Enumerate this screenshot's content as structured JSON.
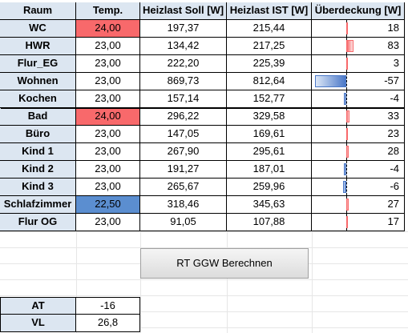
{
  "headers": [
    "Raum",
    "Temp.",
    "Heizlast Soll [W]",
    "Heizlast IST [W]",
    "Überdeckung [W]"
  ],
  "rows": [
    {
      "name": "WC",
      "temp": "24,00",
      "soll": "197,37",
      "ist": "215,44",
      "ueber": "18",
      "value": 18,
      "temp_state": "high"
    },
    {
      "name": "HWR",
      "temp": "23,00",
      "soll": "134,42",
      "ist": "217,25",
      "ueber": "83",
      "value": 83,
      "temp_state": "normal"
    },
    {
      "name": "Flur_EG",
      "temp": "23,00",
      "soll": "222,20",
      "ist": "225,39",
      "ueber": "3",
      "value": 3,
      "temp_state": "normal"
    },
    {
      "name": "Wohnen",
      "temp": "23,00",
      "soll": "869,73",
      "ist": "812,64",
      "ueber": "-57",
      "value": -57,
      "temp_state": "normal"
    },
    {
      "name": "Kochen",
      "temp": "23,00",
      "soll": "157,14",
      "ist": "152,77",
      "ueber": "-4",
      "value": -4,
      "temp_state": "normal"
    },
    {
      "name": "Bad",
      "temp": "24,00",
      "soll": "296,22",
      "ist": "329,58",
      "ueber": "33",
      "value": 33,
      "temp_state": "high"
    },
    {
      "name": "Büro",
      "temp": "23,00",
      "soll": "147,05",
      "ist": "169,61",
      "ueber": "23",
      "value": 23,
      "temp_state": "normal"
    },
    {
      "name": "Kind 1",
      "temp": "23,00",
      "soll": "267,90",
      "ist": "295,61",
      "ueber": "28",
      "value": 28,
      "temp_state": "normal"
    },
    {
      "name": "Kind 2",
      "temp": "23,00",
      "soll": "191,27",
      "ist": "187,01",
      "ueber": "-4",
      "value": -4,
      "temp_state": "normal"
    },
    {
      "name": "Kind 3",
      "temp": "23,00",
      "soll": "265,67",
      "ist": "259,96",
      "ueber": "-6",
      "value": -6,
      "temp_state": "normal"
    },
    {
      "name": "Schlafzimmer",
      "temp": "22,50",
      "soll": "318,46",
      "ist": "345,63",
      "ueber": "27",
      "value": 27,
      "temp_state": "low"
    },
    {
      "name": "Flur OG",
      "temp": "23,00",
      "soll": "91,05",
      "ist": "107,88",
      "ueber": "17",
      "value": 17,
      "temp_state": "normal"
    }
  ],
  "button": {
    "label": "RT GGW Berechnen"
  },
  "params": [
    {
      "label": "AT",
      "value": "-16"
    },
    {
      "label": "VL",
      "value": "26,8"
    }
  ],
  "colors": {
    "high": "#f8696b",
    "low": "#5b8ed0",
    "header": "#dce6f1",
    "bar_pos": "#f8696b",
    "bar_neg": "#4a78c8"
  }
}
